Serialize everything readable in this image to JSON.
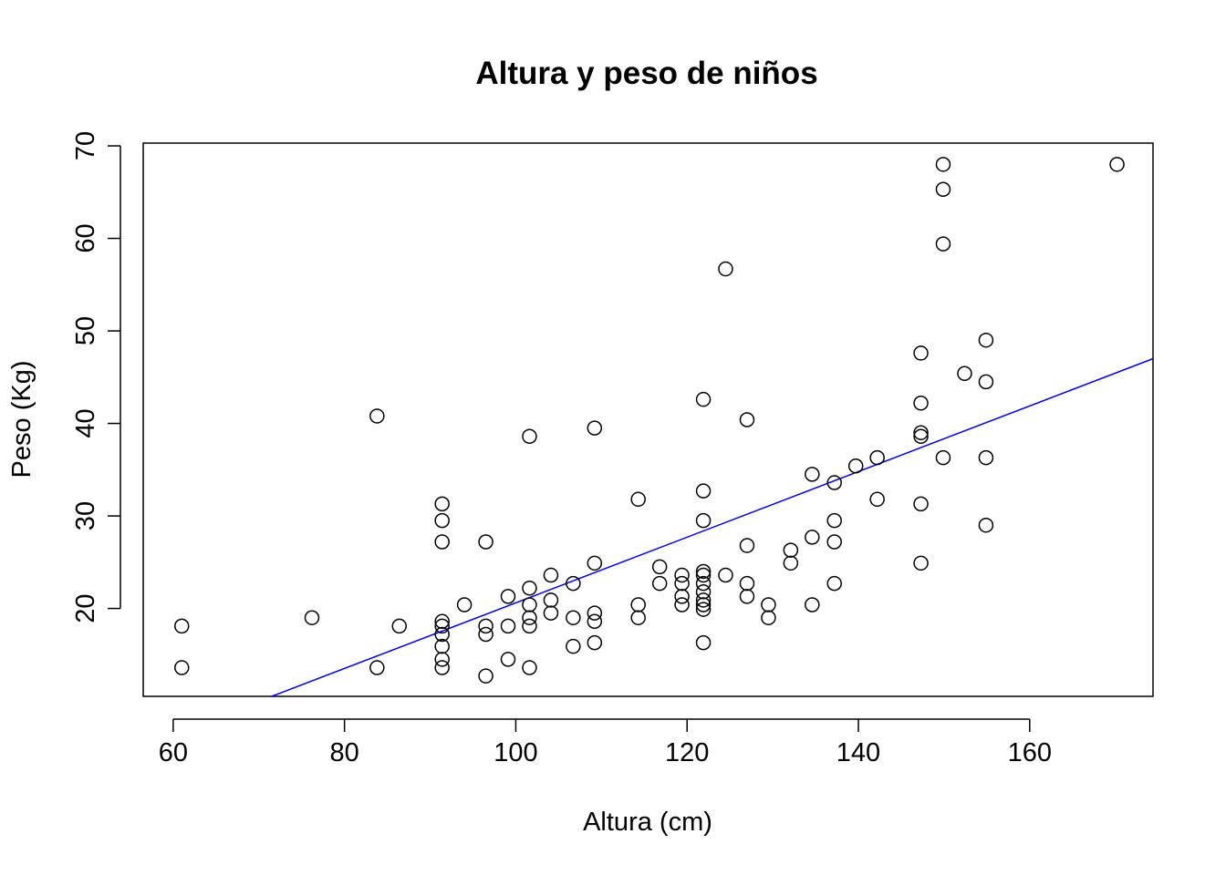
{
  "chart_data": {
    "type": "scatter",
    "title": "Altura y peso de niños",
    "xlabel": "Altura (cm)",
    "ylabel": "Peso (Kg)",
    "xlim": [
      56.5,
      174.4
    ],
    "ylim": [
      10.5,
      70.3
    ],
    "xticks": [
      "60",
      "80",
      "100",
      "120",
      "140",
      "160"
    ],
    "yticks": [
      "20",
      "30",
      "40",
      "50",
      "60",
      "70"
    ],
    "grid": false,
    "point_color": "#000000",
    "line_color": "#0000ff",
    "fit_line": {
      "x": [
        71.5,
        174.4
      ],
      "y": [
        10.5,
        47.0
      ]
    },
    "points": [
      {
        "x": 61.0,
        "y": 18.1
      },
      {
        "x": 61.0,
        "y": 13.6
      },
      {
        "x": 76.2,
        "y": 19.0
      },
      {
        "x": 83.8,
        "y": 40.8
      },
      {
        "x": 83.8,
        "y": 13.6
      },
      {
        "x": 86.4,
        "y": 18.1
      },
      {
        "x": 91.4,
        "y": 31.3
      },
      {
        "x": 91.4,
        "y": 29.5
      },
      {
        "x": 91.4,
        "y": 27.2
      },
      {
        "x": 91.4,
        "y": 18.6
      },
      {
        "x": 91.4,
        "y": 18.1
      },
      {
        "x": 91.4,
        "y": 17.2
      },
      {
        "x": 91.4,
        "y": 15.9
      },
      {
        "x": 91.4,
        "y": 14.5
      },
      {
        "x": 91.4,
        "y": 13.6
      },
      {
        "x": 94.0,
        "y": 20.4
      },
      {
        "x": 96.5,
        "y": 27.2
      },
      {
        "x": 96.5,
        "y": 18.1
      },
      {
        "x": 96.5,
        "y": 17.2
      },
      {
        "x": 96.5,
        "y": 12.7
      },
      {
        "x": 99.1,
        "y": 21.3
      },
      {
        "x": 99.1,
        "y": 18.1
      },
      {
        "x": 99.1,
        "y": 14.5
      },
      {
        "x": 101.6,
        "y": 38.6
      },
      {
        "x": 101.6,
        "y": 22.2
      },
      {
        "x": 101.6,
        "y": 20.4
      },
      {
        "x": 101.6,
        "y": 19.0
      },
      {
        "x": 101.6,
        "y": 18.1
      },
      {
        "x": 101.6,
        "y": 13.6
      },
      {
        "x": 104.1,
        "y": 23.6
      },
      {
        "x": 104.1,
        "y": 20.9
      },
      {
        "x": 104.1,
        "y": 19.5
      },
      {
        "x": 106.7,
        "y": 22.7
      },
      {
        "x": 106.7,
        "y": 19.0
      },
      {
        "x": 106.7,
        "y": 15.9
      },
      {
        "x": 109.2,
        "y": 39.5
      },
      {
        "x": 109.2,
        "y": 24.9
      },
      {
        "x": 109.2,
        "y": 19.5
      },
      {
        "x": 109.2,
        "y": 18.6
      },
      {
        "x": 109.2,
        "y": 16.3
      },
      {
        "x": 114.3,
        "y": 31.8
      },
      {
        "x": 114.3,
        "y": 20.4
      },
      {
        "x": 114.3,
        "y": 19.0
      },
      {
        "x": 116.8,
        "y": 24.5
      },
      {
        "x": 116.8,
        "y": 22.7
      },
      {
        "x": 119.4,
        "y": 23.6
      },
      {
        "x": 119.4,
        "y": 22.7
      },
      {
        "x": 119.4,
        "y": 21.3
      },
      {
        "x": 119.4,
        "y": 20.4
      },
      {
        "x": 121.9,
        "y": 42.6
      },
      {
        "x": 121.9,
        "y": 32.7
      },
      {
        "x": 121.9,
        "y": 29.5
      },
      {
        "x": 121.9,
        "y": 24.0
      },
      {
        "x": 121.9,
        "y": 23.6
      },
      {
        "x": 121.9,
        "y": 22.7
      },
      {
        "x": 121.9,
        "y": 21.8
      },
      {
        "x": 121.9,
        "y": 20.9
      },
      {
        "x": 121.9,
        "y": 20.4
      },
      {
        "x": 121.9,
        "y": 19.9
      },
      {
        "x": 121.9,
        "y": 16.3
      },
      {
        "x": 124.5,
        "y": 56.7
      },
      {
        "x": 124.5,
        "y": 23.6
      },
      {
        "x": 127.0,
        "y": 40.4
      },
      {
        "x": 127.0,
        "y": 26.8
      },
      {
        "x": 127.0,
        "y": 22.7
      },
      {
        "x": 127.0,
        "y": 21.3
      },
      {
        "x": 129.5,
        "y": 20.4
      },
      {
        "x": 129.5,
        "y": 19.0
      },
      {
        "x": 132.1,
        "y": 26.3
      },
      {
        "x": 132.1,
        "y": 24.9
      },
      {
        "x": 134.6,
        "y": 34.5
      },
      {
        "x": 134.6,
        "y": 27.7
      },
      {
        "x": 134.6,
        "y": 20.4
      },
      {
        "x": 137.2,
        "y": 33.6
      },
      {
        "x": 137.2,
        "y": 29.5
      },
      {
        "x": 137.2,
        "y": 27.2
      },
      {
        "x": 137.2,
        "y": 22.7
      },
      {
        "x": 139.7,
        "y": 35.4
      },
      {
        "x": 142.2,
        "y": 36.3
      },
      {
        "x": 142.2,
        "y": 31.8
      },
      {
        "x": 147.3,
        "y": 47.6
      },
      {
        "x": 147.3,
        "y": 42.2
      },
      {
        "x": 147.3,
        "y": 39.0
      },
      {
        "x": 147.3,
        "y": 38.6
      },
      {
        "x": 147.3,
        "y": 31.3
      },
      {
        "x": 147.3,
        "y": 24.9
      },
      {
        "x": 149.9,
        "y": 68.0
      },
      {
        "x": 149.9,
        "y": 65.3
      },
      {
        "x": 149.9,
        "y": 59.4
      },
      {
        "x": 149.9,
        "y": 36.3
      },
      {
        "x": 152.4,
        "y": 45.4
      },
      {
        "x": 154.9,
        "y": 49.0
      },
      {
        "x": 154.9,
        "y": 44.5
      },
      {
        "x": 154.9,
        "y": 36.3
      },
      {
        "x": 154.9,
        "y": 29.0
      },
      {
        "x": 170.2,
        "y": 68.0
      }
    ]
  }
}
